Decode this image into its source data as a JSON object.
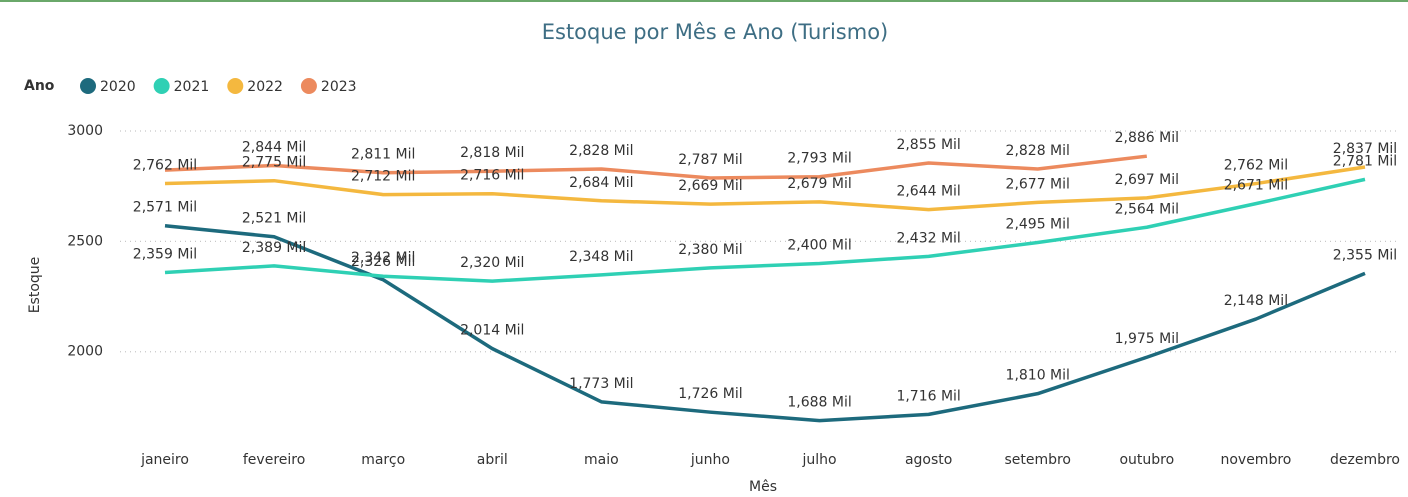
{
  "chart_data": {
    "type": "line",
    "title": "Estoque por Mês e Ano (Turismo)",
    "legend_title": "Ano",
    "legend_position": "top-left",
    "x_label": "Mês",
    "y_label": "Estoque",
    "categories": [
      "janeiro",
      "fevereiro",
      "março",
      "abril",
      "maio",
      "junho",
      "julho",
      "agosto",
      "setembro",
      "outubro",
      "novembro",
      "dezembro"
    ],
    "ylim": [
      1600,
      3050
    ],
    "yticks": [
      2000,
      2500,
      3000
    ],
    "grid": true,
    "series": [
      {
        "name": "2020",
        "color": "#1d6a7d",
        "values": [
          2571,
          2521,
          2326,
          2014,
          1773,
          1726,
          1688,
          1716,
          1810,
          1975,
          2148,
          2355
        ],
        "value_labels": [
          "2,571 Mil",
          "2,521 Mil",
          "2,326 Mil",
          "2,014 Mil",
          "1,773 Mil",
          "1,726 Mil",
          "1,688 Mil",
          "1,716 Mil",
          "1,810 Mil",
          "1,975 Mil",
          "2,148 Mil",
          "2,355 Mil"
        ]
      },
      {
        "name": "2021",
        "color": "#2fd0b4",
        "values": [
          2359,
          2389,
          2342,
          2320,
          2348,
          2380,
          2400,
          2432,
          2495,
          2564,
          2671,
          2781
        ],
        "value_labels": [
          "2,359 Mil",
          "2,389 Mil",
          "2,342 Mil",
          "2,320 Mil",
          "2,348 Mil",
          "2,380 Mil",
          "2,400 Mil",
          "2,432 Mil",
          "2,495 Mil",
          "2,564 Mil",
          "2,671 Mil",
          "2,781 Mil"
        ]
      },
      {
        "name": "2022",
        "color": "#f4b83f",
        "values": [
          2762,
          2775,
          2712,
          2716,
          2684,
          2669,
          2679,
          2644,
          2677,
          2697,
          2762,
          2837
        ],
        "value_labels": [
          "2,762 Mil",
          "2,775 Mil",
          "2,712 Mil",
          "2,716 Mil",
          "2,684 Mil",
          "2,669 Mil",
          "2,679 Mil",
          "2,644 Mil",
          "2,677 Mil",
          "2,697 Mil",
          "2,762 Mil",
          "2,837 Mil"
        ]
      },
      {
        "name": "2023",
        "color": "#ec8a5e",
        "values": [
          2823,
          2844,
          2811,
          2818,
          2828,
          2787,
          2793,
          2855,
          2828,
          2886,
          null,
          null
        ],
        "value_labels": [
          null,
          "2,844 Mil",
          "2,811 Mil",
          "2,818 Mil",
          "2,828 Mil",
          "2,787 Mil",
          "2,793 Mil",
          "2,855 Mil",
          "2,828 Mil",
          "2,886 Mil",
          null,
          null
        ]
      }
    ]
  }
}
